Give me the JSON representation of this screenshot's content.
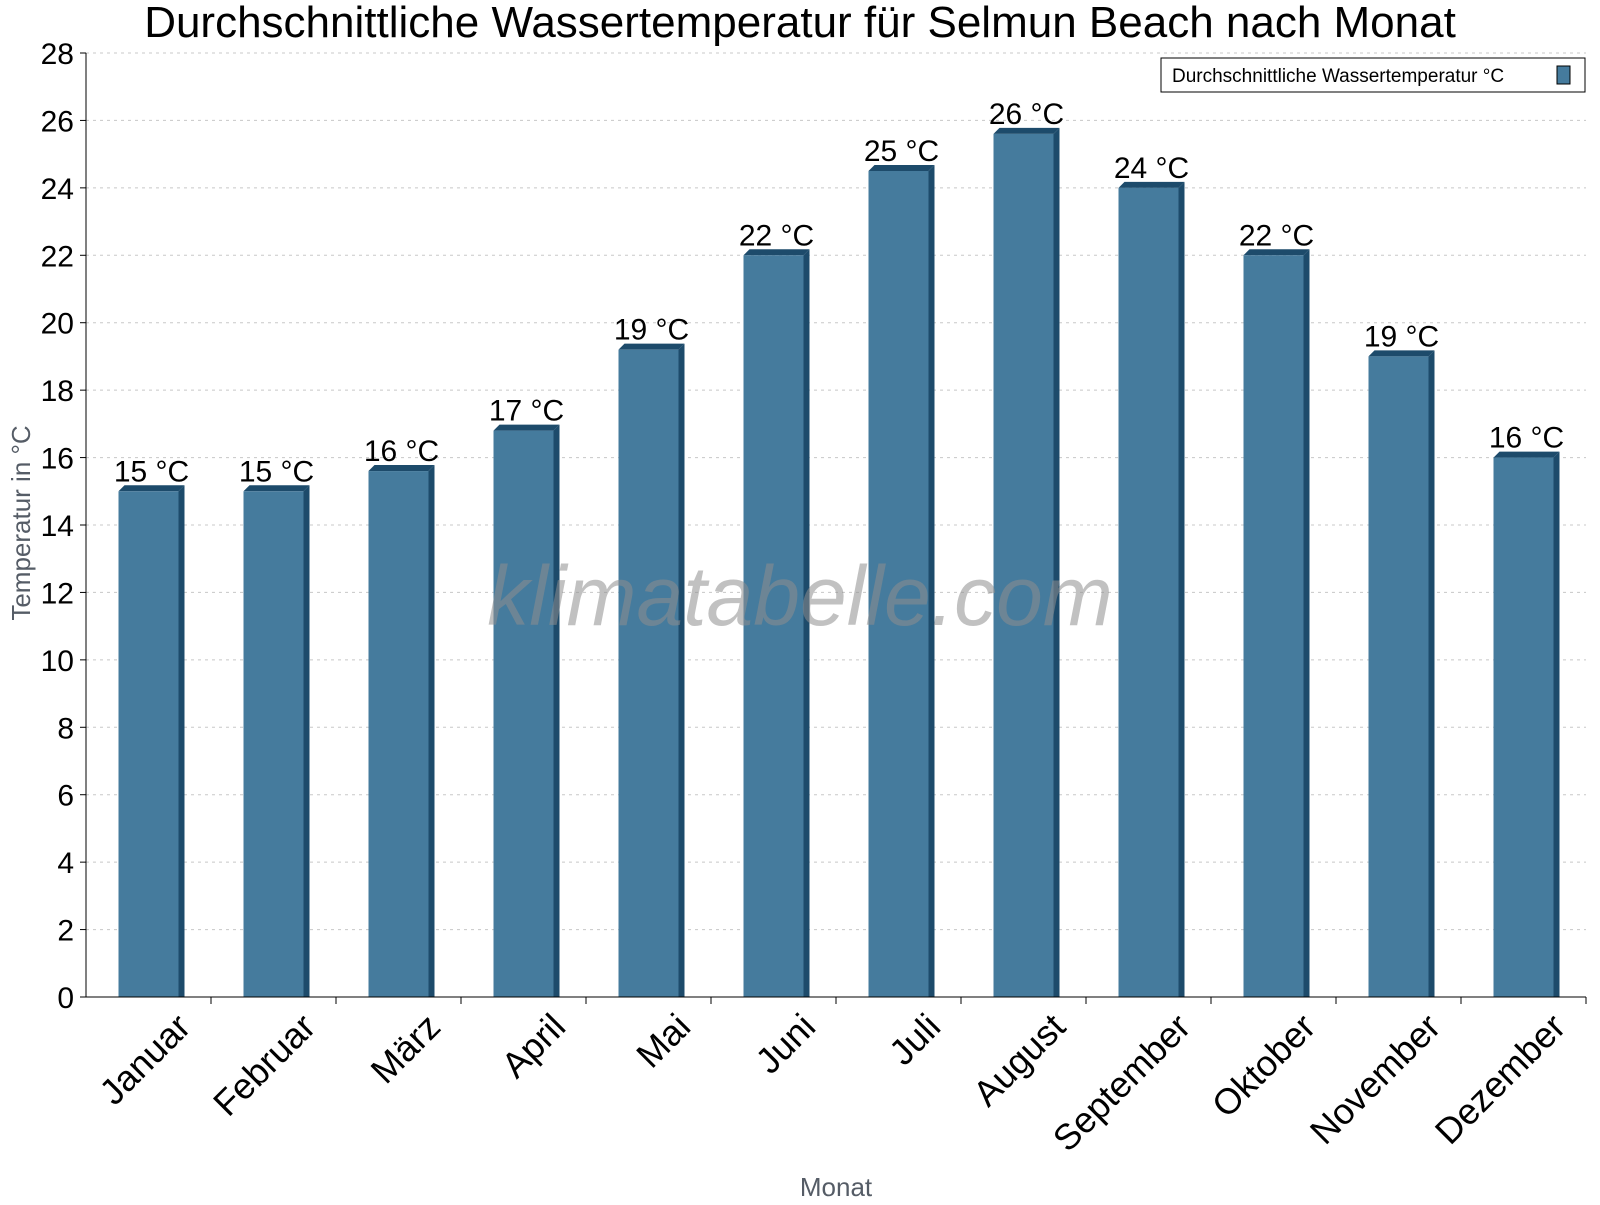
{
  "chart_data": {
    "type": "bar",
    "title": "Durchschnittliche Wassertemperatur für Selmun Beach nach Monat",
    "xlabel": "Monat",
    "ylabel": "Temperatur in °C",
    "categories": [
      "Januar",
      "Februar",
      "März",
      "April",
      "Mai",
      "Juni",
      "Juli",
      "August",
      "September",
      "Oktober",
      "November",
      "Dezember"
    ],
    "series": [
      {
        "name": "Durchschnittliche Wassertemperatur °C",
        "values": [
          15.0,
          15.0,
          15.6,
          16.8,
          19.2,
          22.0,
          24.5,
          25.6,
          24.0,
          22.0,
          19.0,
          16.0
        ],
        "data_labels": [
          "15 °C",
          "15 °C",
          "16 °C",
          "17 °C",
          "19 °C",
          "22 °C",
          "25 °C",
          "26 °C",
          "24 °C",
          "22 °C",
          "19 °C",
          "16 °C"
        ]
      }
    ],
    "ylim": [
      0,
      28
    ],
    "yticks": [
      0,
      2,
      4,
      6,
      8,
      10,
      12,
      14,
      16,
      18,
      20,
      22,
      24,
      26,
      28
    ],
    "grid": true,
    "legend_position": "top-right",
    "colors": {
      "bar": "#457b9d",
      "bar_edge": "#1d4b6b",
      "grid": "#c8c8c8"
    }
  },
  "watermark": "klimatabelle.com"
}
